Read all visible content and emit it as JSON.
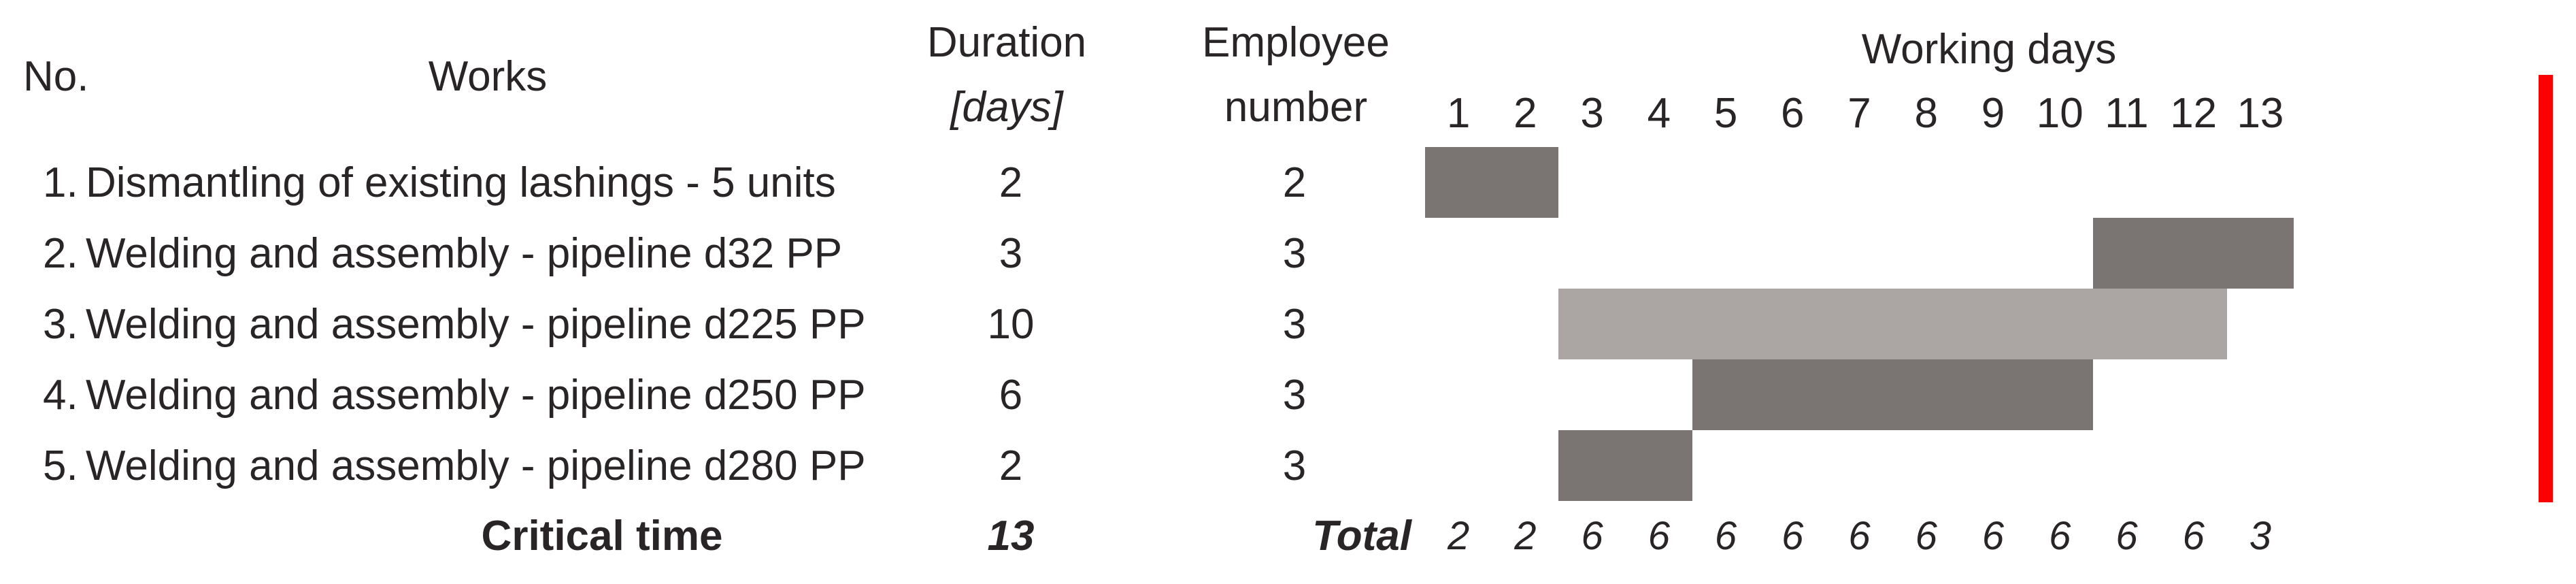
{
  "headers": {
    "no": "No.",
    "works": "Works",
    "duration_line1": "Duration",
    "duration_line2": "[days]",
    "employee_line1": "Employee",
    "employee_line2": "number",
    "working_days": "Working days"
  },
  "rows": [
    {
      "no": "1.",
      "work": "Dismantling of existing lashings - 5 units",
      "duration": "2",
      "employees": "2"
    },
    {
      "no": "2.",
      "work": "Welding and assembly - pipeline d32 PP",
      "duration": "3",
      "employees": "3"
    },
    {
      "no": "3.",
      "work": "Welding and assembly - pipeline d225 PP",
      "duration": "10",
      "employees": "3"
    },
    {
      "no": "4.",
      "work": "Welding and assembly - pipeline d250 PP",
      "duration": "6",
      "employees": "3"
    },
    {
      "no": "5.",
      "work": "Welding and assembly - pipeline d280 PP",
      "duration": "2",
      "employees": "3"
    }
  ],
  "summary": {
    "critical_label": "Critical time",
    "critical_value": "13",
    "total_label": "Total"
  },
  "colors": {
    "dark_bar": "#7a7472",
    "light_bar": "#aba5a3",
    "critical_line": "#fb0202",
    "text": "#292526",
    "background": "#ffffff"
  },
  "chart_data": {
    "type": "bar",
    "subtype": "gantt",
    "title": "Working days",
    "xlabel": "Working days",
    "xlim": [
      1,
      13
    ],
    "grid": false,
    "day_labels": [
      "1",
      "2",
      "3",
      "4",
      "5",
      "6",
      "7",
      "8",
      "9",
      "10",
      "11",
      "12",
      "13"
    ],
    "tasks": [
      {
        "name": "Dismantling of existing lashings - 5 units",
        "start_day": 1,
        "end_day": 2,
        "duration_days": 2,
        "employees": 2,
        "color": "dark"
      },
      {
        "name": "Welding and assembly - pipeline d32 PP",
        "start_day": 11,
        "end_day": 13,
        "duration_days": 3,
        "employees": 3,
        "color": "dark"
      },
      {
        "name": "Welding and assembly - pipeline d225 PP",
        "start_day": 3,
        "end_day": 12,
        "duration_days": 10,
        "employees": 3,
        "color": "light"
      },
      {
        "name": "Welding and assembly - pipeline d250 PP",
        "start_day": 5,
        "end_day": 10,
        "duration_days": 6,
        "employees": 3,
        "color": "dark"
      },
      {
        "name": "Welding and assembly - pipeline d280 PP",
        "start_day": 3,
        "end_day": 4,
        "duration_days": 2,
        "employees": 3,
        "color": "dark"
      }
    ],
    "daily_totals": [
      2,
      2,
      6,
      6,
      6,
      6,
      6,
      6,
      6,
      6,
      6,
      6,
      3
    ],
    "critical_time_days": 13
  }
}
